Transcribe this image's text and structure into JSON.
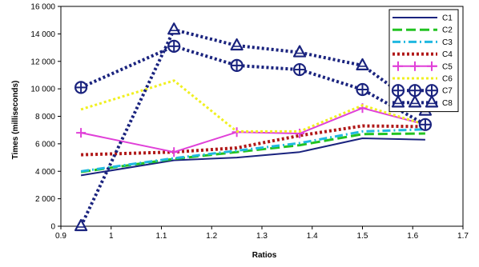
{
  "chart_data": {
    "type": "line",
    "xlabel": "Ratios",
    "ylabel": "Times (milliseconds)",
    "xlim": [
      0.9,
      1.7
    ],
    "ylim": [
      0,
      16000
    ],
    "xticks": [
      "0.9",
      "1",
      "1.1",
      "1.2",
      "1.3",
      "1.4",
      "1.5",
      "1.6",
      "1.7"
    ],
    "xtick_values": [
      0.9,
      1.0,
      1.1,
      1.2,
      1.3,
      1.4,
      1.5,
      1.6,
      1.7
    ],
    "yticks": [
      "0",
      "2 000",
      "4 000",
      "6 000",
      "8 000",
      "10 000",
      "12 000",
      "14 000",
      "16 000"
    ],
    "ytick_values": [
      0,
      2000,
      4000,
      6000,
      8000,
      10000,
      12000,
      14000,
      16000
    ],
    "grid": false,
    "legend_position": "top-right",
    "x": [
      0.94,
      1.125,
      1.25,
      1.375,
      1.5,
      1.625
    ],
    "series": [
      {
        "name": "C1",
        "color": "#1a237e",
        "style": "solid",
        "marker": "none",
        "width": 2,
        "values": [
          3700,
          4800,
          5000,
          5400,
          6400,
          6300
        ]
      },
      {
        "name": "C2",
        "color": "#22c322",
        "style": "longdash",
        "marker": "none",
        "width": 3,
        "values": [
          3950,
          4900,
          5400,
          5900,
          6700,
          6750
        ]
      },
      {
        "name": "C3",
        "color": "#20b8e0",
        "style": "dashdot",
        "marker": "none",
        "width": 3,
        "values": [
          4000,
          4950,
          5500,
          6050,
          6900,
          7050
        ]
      },
      {
        "name": "C4",
        "color": "#b01818",
        "style": "dotted",
        "marker": "none",
        "width": 4,
        "values": [
          5200,
          5400,
          5700,
          6600,
          7300,
          7250
        ]
      },
      {
        "name": "C5",
        "color": "#e040d8",
        "style": "solid",
        "marker": "plus",
        "width": 2,
        "values": [
          6800,
          5400,
          6850,
          6750,
          8600,
          7400
        ]
      },
      {
        "name": "C6",
        "color": "#f0f020",
        "style": "dotted",
        "marker": "none",
        "width": 3,
        "values": [
          8500,
          10600,
          6900,
          6900,
          8800,
          7400
        ]
      },
      {
        "name": "C7",
        "color": "#1a237e",
        "style": "dotted",
        "marker": "circleplus",
        "width": 4,
        "values": [
          10100,
          13100,
          11700,
          11400,
          9950,
          7400
        ]
      },
      {
        "name": "C8",
        "color": "#1a237e",
        "style": "dotted",
        "marker": "triangle",
        "width": 4,
        "values": [
          0,
          14300,
          13150,
          12650,
          11700,
          8400
        ]
      }
    ]
  }
}
